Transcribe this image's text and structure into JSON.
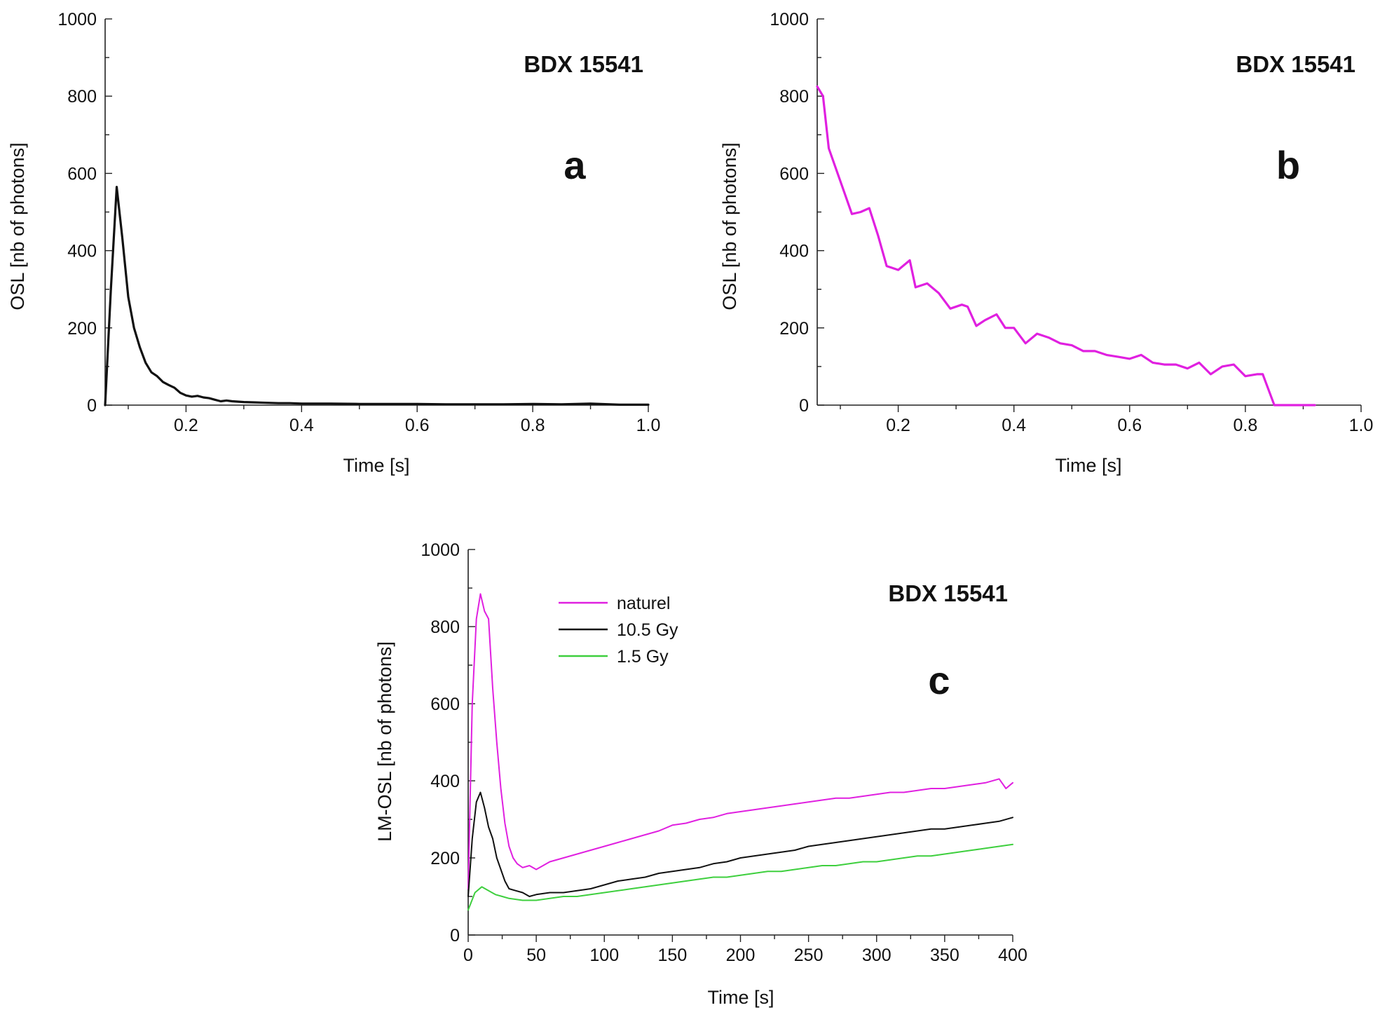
{
  "chart_data": [
    {
      "type": "line",
      "panel_letter": "a",
      "sample_label": "BDX 15541",
      "xlabel": "Time [s]",
      "ylabel": "OSL [nb of photons]",
      "xlim": [
        0.06,
        1.0
      ],
      "ylim": [
        0,
        1000
      ],
      "x_ticks": [
        "0.2",
        "0.4",
        "0.6",
        "0.8",
        "1.0"
      ],
      "y_ticks": [
        "0",
        "200",
        "400",
        "600",
        "800",
        "1000"
      ],
      "grid": false,
      "series": [
        {
          "color": "#111111",
          "x": [
            0.06,
            0.07,
            0.08,
            0.09,
            0.1,
            0.11,
            0.12,
            0.13,
            0.14,
            0.15,
            0.16,
            0.17,
            0.18,
            0.19,
            0.2,
            0.21,
            0.22,
            0.23,
            0.24,
            0.25,
            0.26,
            0.27,
            0.28,
            0.3,
            0.32,
            0.34,
            0.36,
            0.38,
            0.4,
            0.45,
            0.5,
            0.55,
            0.6,
            0.65,
            0.7,
            0.75,
            0.8,
            0.85,
            0.9,
            0.95,
            1.0
          ],
          "y": [
            0,
            300,
            565,
            430,
            280,
            200,
            150,
            110,
            85,
            75,
            60,
            52,
            45,
            32,
            25,
            22,
            24,
            20,
            18,
            14,
            10,
            12,
            10,
            8,
            7,
            6,
            5,
            5,
            4,
            4,
            3,
            3,
            3,
            2,
            2,
            2,
            3,
            2,
            4,
            1,
            1
          ]
        }
      ]
    },
    {
      "type": "line",
      "panel_letter": "b",
      "sample_label": "BDX 15541",
      "xlabel": "Time [s]",
      "ylabel": "OSL [nb of photons]",
      "xlim": [
        0.06,
        1.0
      ],
      "ylim": [
        0,
        1000
      ],
      "x_ticks": [
        "0.2",
        "0.4",
        "0.6",
        "0.8",
        "1.0"
      ],
      "y_ticks": [
        "0",
        "200",
        "400",
        "600",
        "800",
        "1000"
      ],
      "grid": false,
      "series": [
        {
          "color": "#e020e0",
          "x": [
            0.06,
            0.07,
            0.08,
            0.1,
            0.12,
            0.135,
            0.15,
            0.165,
            0.18,
            0.2,
            0.22,
            0.23,
            0.25,
            0.27,
            0.29,
            0.31,
            0.32,
            0.335,
            0.35,
            0.37,
            0.385,
            0.4,
            0.42,
            0.44,
            0.46,
            0.48,
            0.5,
            0.52,
            0.54,
            0.56,
            0.58,
            0.6,
            0.62,
            0.64,
            0.66,
            0.68,
            0.7,
            0.72,
            0.74,
            0.76,
            0.78,
            0.8,
            0.82,
            0.83,
            0.85,
            0.88,
            0.92
          ],
          "y": [
            825,
            800,
            665,
            580,
            495,
            500,
            510,
            440,
            360,
            350,
            375,
            305,
            315,
            290,
            250,
            260,
            255,
            205,
            220,
            235,
            200,
            200,
            160,
            185,
            175,
            160,
            155,
            140,
            140,
            130,
            125,
            120,
            130,
            110,
            105,
            105,
            95,
            110,
            80,
            100,
            105,
            75,
            80,
            80,
            0,
            0,
            0
          ]
        }
      ]
    },
    {
      "type": "line",
      "panel_letter": "c",
      "sample_label": "BDX 15541",
      "xlabel": "Time [s]",
      "ylabel": "LM-OSL [nb of photons]",
      "xlim": [
        0,
        400
      ],
      "ylim": [
        0,
        1000
      ],
      "x_ticks": [
        "0",
        "50",
        "100",
        "150",
        "200",
        "250",
        "300",
        "350",
        "400"
      ],
      "y_ticks": [
        "0",
        "200",
        "400",
        "600",
        "800",
        "1000"
      ],
      "grid": false,
      "legend_position": "top-left",
      "series": [
        {
          "name": "naturel",
          "color": "#e020e0",
          "x": [
            0,
            3,
            6,
            9,
            12,
            15,
            18,
            21,
            24,
            27,
            30,
            33,
            36,
            40,
            45,
            50,
            60,
            70,
            80,
            90,
            100,
            110,
            120,
            130,
            140,
            150,
            160,
            170,
            180,
            190,
            200,
            210,
            220,
            230,
            240,
            250,
            260,
            270,
            280,
            290,
            300,
            310,
            320,
            330,
            340,
            350,
            360,
            370,
            380,
            390,
            395,
            400
          ],
          "y": [
            120,
            600,
            820,
            885,
            840,
            820,
            640,
            500,
            380,
            290,
            230,
            200,
            185,
            175,
            180,
            170,
            190,
            200,
            210,
            220,
            230,
            240,
            250,
            260,
            270,
            285,
            290,
            300,
            305,
            315,
            320,
            325,
            330,
            335,
            340,
            345,
            350,
            355,
            355,
            360,
            365,
            370,
            370,
            375,
            380,
            380,
            385,
            390,
            395,
            405,
            380,
            395
          ]
        },
        {
          "name": "10.5 Gy",
          "color": "#111111",
          "x": [
            0,
            3,
            6,
            9,
            12,
            15,
            18,
            21,
            24,
            27,
            30,
            35,
            40,
            45,
            50,
            60,
            70,
            80,
            90,
            100,
            110,
            120,
            130,
            140,
            150,
            160,
            170,
            180,
            190,
            200,
            210,
            220,
            230,
            240,
            250,
            260,
            270,
            280,
            290,
            300,
            310,
            320,
            330,
            340,
            350,
            360,
            370,
            380,
            390,
            400
          ],
          "y": [
            100,
            250,
            345,
            370,
            330,
            280,
            250,
            200,
            170,
            140,
            120,
            115,
            110,
            100,
            105,
            110,
            110,
            115,
            120,
            130,
            140,
            145,
            150,
            160,
            165,
            170,
            175,
            185,
            190,
            200,
            205,
            210,
            215,
            220,
            230,
            235,
            240,
            245,
            250,
            255,
            260,
            265,
            270,
            275,
            275,
            280,
            285,
            290,
            295,
            305
          ]
        },
        {
          "name": "1.5 Gy",
          "color": "#3ecf3e",
          "x": [
            0,
            5,
            10,
            15,
            20,
            25,
            30,
            40,
            50,
            60,
            70,
            80,
            90,
            100,
            110,
            120,
            130,
            140,
            150,
            160,
            170,
            180,
            190,
            200,
            210,
            220,
            230,
            240,
            250,
            260,
            270,
            280,
            290,
            300,
            310,
            320,
            330,
            340,
            350,
            360,
            370,
            380,
            390,
            400
          ],
          "y": [
            65,
            110,
            125,
            115,
            105,
            100,
            95,
            90,
            90,
            95,
            100,
            100,
            105,
            110,
            115,
            120,
            125,
            130,
            135,
            140,
            145,
            150,
            150,
            155,
            160,
            165,
            165,
            170,
            175,
            180,
            180,
            185,
            190,
            190,
            195,
            200,
            205,
            205,
            210,
            215,
            220,
            225,
            230,
            235
          ]
        }
      ]
    }
  ]
}
